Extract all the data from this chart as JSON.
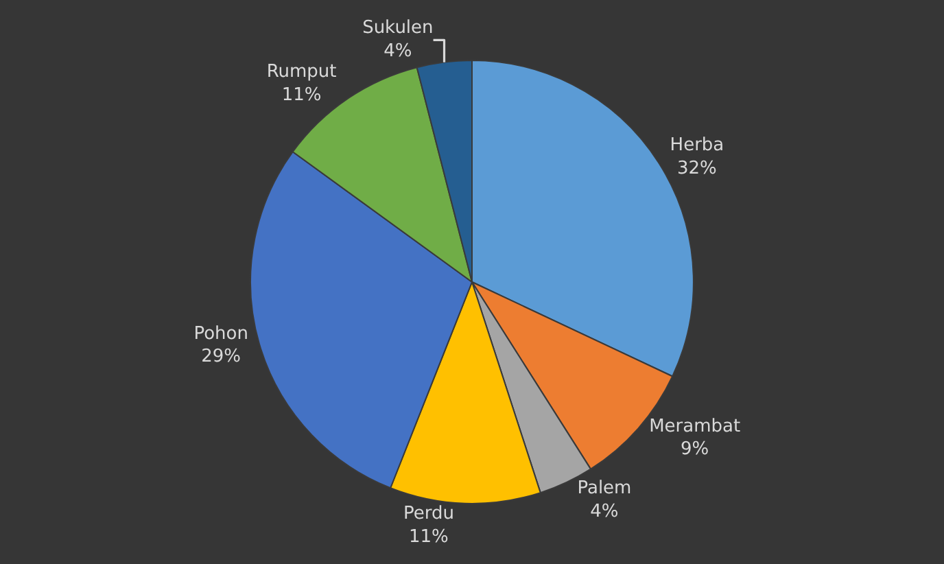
{
  "chart_data": {
    "type": "pie",
    "categories": [
      "Herba",
      "Merambat",
      "Palem",
      "Perdu",
      "Pohon",
      "Rumput",
      "Sukulen"
    ],
    "values": [
      32,
      9,
      4,
      11,
      29,
      11,
      4
    ],
    "value_labels": [
      "32%",
      "9%",
      "4%",
      "11%",
      "29%",
      "11%",
      "4%"
    ],
    "colors": [
      "#5b9bd5",
      "#ed7d31",
      "#a5a5a5",
      "#ffc000",
      "#4472c4",
      "#70ad47",
      "#255e91"
    ],
    "legend": false
  }
}
